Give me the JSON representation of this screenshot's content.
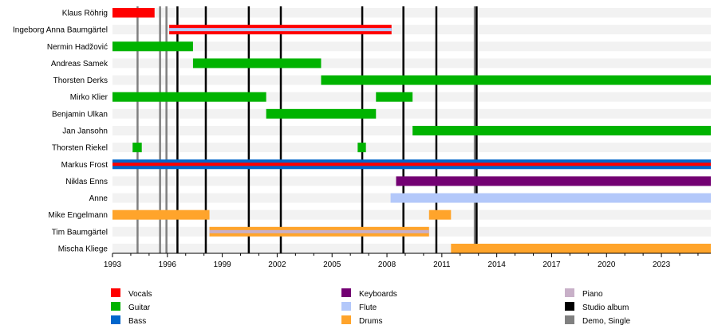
{
  "chart_data": {
    "type": "timeline",
    "xlim": [
      1993,
      2025.7
    ],
    "x_ticks": [
      1993,
      1996,
      1999,
      2002,
      2005,
      2008,
      2011,
      2014,
      2017,
      2020,
      2023
    ],
    "roles": {
      "Vocals": "#ff0000",
      "Guitar": "#00b300",
      "Bass": "#0066cc",
      "Keyboards": "#730073",
      "Flute": "#b3c8fa",
      "Drums": "#ffa42b",
      "Piano": "#c8b0c8"
    },
    "members": [
      {
        "name": "Klaus Röhrig",
        "spans": [
          {
            "role": "Vocals",
            "start": 1993,
            "end": 1995.3
          }
        ]
      },
      {
        "name": "Ingeborg Anna Baumgärtel",
        "spans": [
          {
            "role": "Vocals",
            "start": 1996.1,
            "end": 2008.25,
            "stripe": "Flute"
          }
        ]
      },
      {
        "name": "Nermin Hadžović",
        "spans": [
          {
            "role": "Guitar",
            "start": 1993,
            "end": 1997.4
          }
        ]
      },
      {
        "name": "Andreas Samek",
        "spans": [
          {
            "role": "Guitar",
            "start": 1997.4,
            "end": 2004.4
          }
        ]
      },
      {
        "name": "Thorsten Derks",
        "spans": [
          {
            "role": "Guitar",
            "start": 2004.4,
            "end": 2025.7
          }
        ]
      },
      {
        "name": "Mirko Klier",
        "spans": [
          {
            "role": "Guitar",
            "start": 1993,
            "end": 2001.4
          },
          {
            "role": "Guitar",
            "start": 2007.4,
            "end": 2009.4
          }
        ]
      },
      {
        "name": "Benjamin Ulkan",
        "spans": [
          {
            "role": "Guitar",
            "start": 2001.4,
            "end": 2007.4
          }
        ]
      },
      {
        "name": "Jan Jansohn",
        "spans": [
          {
            "role": "Guitar",
            "start": 2009.4,
            "end": 2025.7
          }
        ]
      },
      {
        "name": "Thorsten Riekel",
        "spans": [
          {
            "role": "Guitar",
            "start": 1994.1,
            "end": 1994.6
          },
          {
            "role": "Guitar",
            "start": 2006.4,
            "end": 2006.85
          }
        ]
      },
      {
        "name": "Markus Frost",
        "spans": [
          {
            "role": "Bass",
            "start": 1993,
            "end": 2025.7,
            "stripe": "Vocals"
          }
        ]
      },
      {
        "name": "Niklas Enns",
        "spans": [
          {
            "role": "Keyboards",
            "start": 2008.5,
            "end": 2025.7
          }
        ]
      },
      {
        "name": "Anne",
        "spans": [
          {
            "role": "Flute",
            "start": 2008.2,
            "end": 2025.7
          }
        ]
      },
      {
        "name": "Mike Engelmann",
        "spans": [
          {
            "role": "Drums",
            "start": 1993,
            "end": 1998.3
          },
          {
            "role": "Drums",
            "start": 2010.3,
            "end": 2011.5
          }
        ]
      },
      {
        "name": "Tim Baumgärtel",
        "spans": [
          {
            "role": "Drums",
            "start": 1998.3,
            "end": 2010.3,
            "stripe": "Piano"
          }
        ]
      },
      {
        "name": "Mischa Kliege",
        "spans": [
          {
            "role": "Drums",
            "start": 2011.5,
            "end": 2025.7
          }
        ]
      }
    ],
    "events": [
      {
        "type": "Demo, Single",
        "x": 1994.37
      },
      {
        "type": "Demo, Single",
        "x": 1995.6
      },
      {
        "type": "Demo, Single",
        "x": 1995.95
      },
      {
        "type": "Demo, Single",
        "x": 2012.8
      },
      {
        "type": "Studio album",
        "x": 1996.55
      },
      {
        "type": "Studio album",
        "x": 1998.1
      },
      {
        "type": "Studio album",
        "x": 2000.45
      },
      {
        "type": "Studio album",
        "x": 2002.2
      },
      {
        "type": "Studio album",
        "x": 2006.65
      },
      {
        "type": "Studio album",
        "x": 2008.9
      },
      {
        "type": "Studio album",
        "x": 2010.7
      },
      {
        "type": "Studio album",
        "x": 2012.9
      }
    ],
    "event_colors": {
      "Studio album": "#000000",
      "Demo, Single": "#808080"
    },
    "legend": [
      "Vocals",
      "Guitar",
      "Bass",
      "Keyboards",
      "Flute",
      "Drums",
      "Piano",
      "Studio album",
      "Demo, Single"
    ],
    "legend_placement": "bottom"
  }
}
